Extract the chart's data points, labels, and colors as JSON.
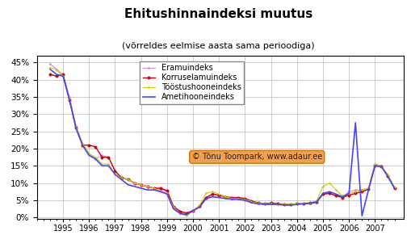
{
  "title": "Ehitushinnaindeksi muutus",
  "subtitle": "(võrreldes eelmise aasta sama perioodiga)",
  "watermark": "© Tõnu Toompark, www.adaur.ee",
  "legend": [
    "Eramuindeks",
    "Korruselamuindeks",
    "Tööstushooneindeks",
    "Ametihooneindeks"
  ],
  "colors": {
    "era": "#cc88ff",
    "korrus": "#cc0000",
    "toostu": "#cccc00",
    "ameti": "#4444ff"
  },
  "ylim": [
    -0.005,
    0.47
  ],
  "yticks": [
    0.0,
    0.05,
    0.1,
    0.15,
    0.2,
    0.25,
    0.3,
    0.35,
    0.4,
    0.45
  ],
  "background": "#ffffff",
  "plot_bg": "#ffffff",
  "quarters": [
    1994.5,
    1994.75,
    1995.0,
    1995.25,
    1995.5,
    1995.75,
    1996.0,
    1996.25,
    1996.5,
    1996.75,
    1997.0,
    1997.25,
    1997.5,
    1997.75,
    1998.0,
    1998.25,
    1998.5,
    1998.75,
    1999.0,
    1999.25,
    1999.5,
    1999.75,
    2000.0,
    2000.25,
    2000.5,
    2000.75,
    2001.0,
    2001.25,
    2001.5,
    2001.75,
    2002.0,
    2002.25,
    2002.5,
    2002.75,
    2003.0,
    2003.25,
    2003.5,
    2003.75,
    2004.0,
    2004.25,
    2004.5,
    2004.75,
    2005.0,
    2005.25,
    2005.5,
    2005.75,
    2006.0,
    2006.25,
    2006.5,
    2006.75,
    2007.0,
    2007.25,
    2007.5,
    2007.75
  ],
  "era": [
    0.445,
    0.43,
    0.415,
    0.35,
    0.265,
    0.215,
    0.185,
    0.17,
    0.18,
    0.175,
    0.135,
    0.115,
    0.11,
    0.1,
    0.095,
    0.09,
    0.085,
    0.08,
    0.075,
    0.03,
    0.015,
    0.01,
    0.02,
    0.03,
    0.055,
    0.065,
    0.065,
    0.06,
    0.055,
    0.055,
    0.05,
    0.045,
    0.04,
    0.04,
    0.04,
    0.04,
    0.038,
    0.038,
    0.04,
    0.04,
    0.04,
    0.042,
    0.068,
    0.07,
    0.065,
    0.06,
    0.075,
    0.08,
    0.08,
    0.085,
    0.155,
    0.15,
    0.12,
    0.085
  ],
  "korrus": [
    0.415,
    0.41,
    0.415,
    0.34,
    0.26,
    0.21,
    0.21,
    0.205,
    0.175,
    0.175,
    0.135,
    0.115,
    0.11,
    0.1,
    0.095,
    0.09,
    0.085,
    0.085,
    0.078,
    0.032,
    0.018,
    0.013,
    0.02,
    0.033,
    0.058,
    0.068,
    0.065,
    0.06,
    0.058,
    0.058,
    0.055,
    0.048,
    0.043,
    0.04,
    0.042,
    0.04,
    0.038,
    0.038,
    0.04,
    0.04,
    0.042,
    0.045,
    0.068,
    0.07,
    0.063,
    0.058,
    0.065,
    0.07,
    0.075,
    0.082,
    0.15,
    0.148,
    0.12,
    0.085
  ],
  "toostu": [
    0.435,
    0.428,
    0.41,
    0.345,
    0.265,
    0.215,
    0.185,
    0.175,
    0.155,
    0.155,
    0.125,
    0.115,
    0.11,
    0.1,
    0.095,
    0.09,
    0.085,
    0.075,
    0.07,
    0.03,
    0.01,
    0.005,
    0.02,
    0.035,
    0.07,
    0.075,
    0.068,
    0.06,
    0.055,
    0.055,
    0.052,
    0.046,
    0.042,
    0.04,
    0.04,
    0.038,
    0.038,
    0.038,
    0.04,
    0.042,
    0.043,
    0.048,
    0.09,
    0.1,
    0.08,
    0.063,
    0.07,
    0.075,
    0.08,
    0.085,
    0.155,
    0.148,
    0.125,
    0.088
  ],
  "ameti": [
    0.43,
    0.415,
    0.41,
    0.34,
    0.258,
    0.21,
    0.18,
    0.17,
    0.15,
    0.15,
    0.125,
    0.11,
    0.095,
    0.09,
    0.085,
    0.08,
    0.08,
    0.075,
    0.068,
    0.025,
    0.012,
    0.008,
    0.02,
    0.03,
    0.055,
    0.06,
    0.058,
    0.055,
    0.053,
    0.053,
    0.05,
    0.043,
    0.04,
    0.038,
    0.038,
    0.038,
    0.036,
    0.036,
    0.038,
    0.04,
    0.042,
    0.045,
    0.07,
    0.075,
    0.068,
    0.06,
    0.07,
    0.275,
    0.005,
    0.08,
    0.15,
    0.148,
    0.118,
    0.085
  ]
}
